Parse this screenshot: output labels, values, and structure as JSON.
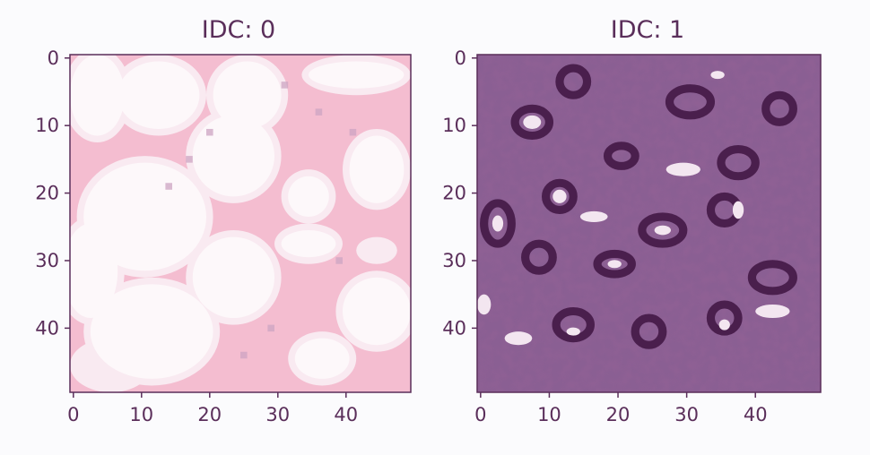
{
  "chart_data": [
    {
      "type": "heatmap",
      "title": "IDC: 0",
      "xlim": [
        0,
        49
      ],
      "ylim": [
        49,
        0
      ],
      "xticks": [
        0,
        10,
        20,
        30,
        40
      ],
      "yticks": [
        0,
        10,
        20,
        30,
        40
      ],
      "tick_labels_x": [
        "0",
        "10",
        "20",
        "30",
        "40"
      ],
      "tick_labels_y": [
        "0",
        "10",
        "20",
        "30",
        "40"
      ],
      "grid": false,
      "colors": {
        "background": "#e97aa2",
        "blob": "#fbeef4",
        "blob_edge": "#f4d4e2",
        "nuclei": "#9b4a86"
      }
    },
    {
      "type": "heatmap",
      "title": "IDC: 1",
      "xlim": [
        0,
        49
      ],
      "ylim": [
        49,
        0
      ],
      "xticks": [
        0,
        10,
        20,
        30,
        40
      ],
      "yticks": [
        0,
        10,
        20,
        30,
        40
      ],
      "tick_labels_x": [
        "0",
        "10",
        "20",
        "30",
        "40"
      ],
      "tick_labels_y": [
        "0",
        "10",
        "20",
        "30",
        "40"
      ],
      "grid": false,
      "colors": {
        "background": "#8a5f93",
        "dark": "#4a1f4d",
        "light": "#f3e6f0",
        "mid": "#a77db0"
      }
    }
  ]
}
